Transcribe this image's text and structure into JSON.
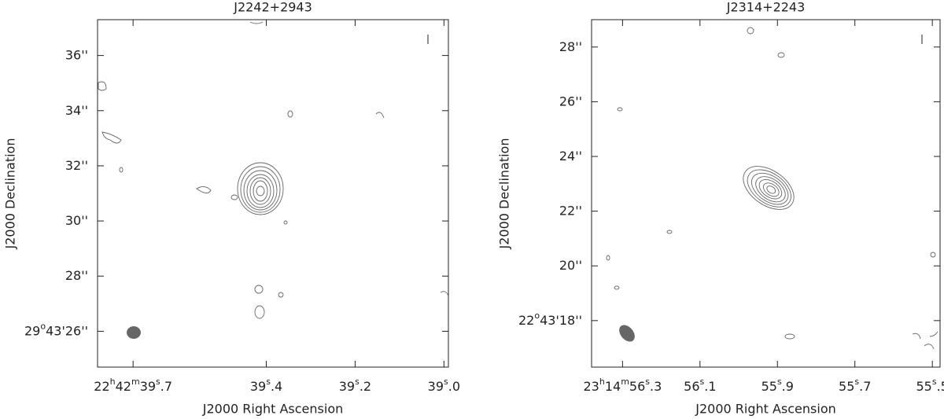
{
  "chart_data": [
    {
      "type": "contour",
      "title": "J2242+2943",
      "xlabel": "J2000 Right Ascension",
      "ylabel": "J2000 Declination",
      "xlim": [
        39.78,
        38.99
      ],
      "ylim": [
        24.7,
        37.3
      ],
      "xticks": [
        {
          "value": 39.7,
          "label": "22h42m39s.7"
        },
        {
          "value": 39.4,
          "label": "39s.4"
        },
        {
          "value": 39.2,
          "label": "39s.2"
        },
        {
          "value": 39.0,
          "label": "39s.0"
        }
      ],
      "yticks": [
        {
          "value": 26,
          "label": "29o43'26''"
        },
        {
          "value": 28,
          "label": "28''"
        },
        {
          "value": 30,
          "label": "30''"
        },
        {
          "value": 32,
          "label": "32''"
        },
        {
          "value": 34,
          "label": "34''"
        },
        {
          "value": 36,
          "label": "36''"
        }
      ]
    },
    {
      "type": "contour",
      "title": "J2314+2243",
      "xlabel": "J2000 Right Ascension",
      "ylabel": "J2000 Declination",
      "xlim": [
        56.38,
        55.48
      ],
      "ylim": [
        16.3,
        29.0
      ],
      "xticks": [
        {
          "value": 56.3,
          "label": "23h14m56s.3"
        },
        {
          "value": 56.1,
          "label": "56s.1"
        },
        {
          "value": 55.9,
          "label": "55s.9"
        },
        {
          "value": 55.7,
          "label": "55s.7"
        },
        {
          "value": 55.5,
          "label": "55s.5"
        }
      ],
      "yticks": [
        {
          "value": 18,
          "label": "22o43'18''"
        },
        {
          "value": 20,
          "label": "20''"
        },
        {
          "value": 22,
          "label": "22''"
        },
        {
          "value": 24,
          "label": "24''"
        },
        {
          "value": 26,
          "label": "26''"
        },
        {
          "value": 28,
          "label": "28''"
        }
      ]
    }
  ]
}
